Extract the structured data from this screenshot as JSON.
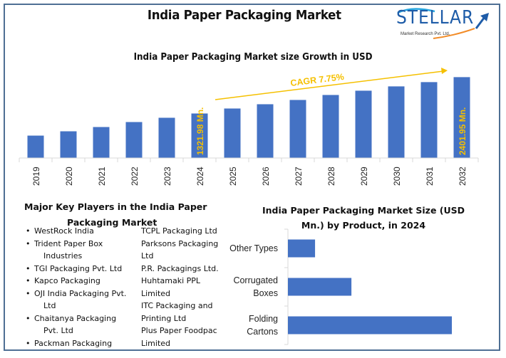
{
  "header": {
    "title": "India Paper Packaging Market",
    "logo": {
      "name": "STELLAR",
      "subtitle": "Market Research Pvt. Ltd.",
      "icon": "arrow-up-right-icon"
    }
  },
  "colors": {
    "bar": "#4472c4",
    "accent": "#f5c000",
    "frame": "#4e6f94",
    "axis": "#d9d9d9"
  },
  "chart_data": [
    {
      "type": "bar",
      "title": "India Paper Packaging Market size Growth in USD",
      "xlabel": "",
      "ylabel": "",
      "categories": [
        "2019",
        "2020",
        "2021",
        "2022",
        "2023",
        "2024",
        "2025",
        "2026",
        "2027",
        "2028",
        "2029",
        "2030",
        "2031",
        "2032"
      ],
      "values": [
        665,
        793,
        920,
        1068,
        1195,
        1321.98,
        1470,
        1597,
        1724,
        1872,
        1999,
        2127,
        2254,
        2401.95
      ],
      "ylim": [
        0,
        2600
      ],
      "grid": false,
      "data_labels": [
        {
          "category": "2024",
          "text": "1321.98 Mn."
        },
        {
          "category": "2032",
          "text": "2401.95 Mn."
        }
      ],
      "annotation": {
        "text": "CAGR 7.75%",
        "type": "arrow",
        "from": "2024",
        "to": "2032"
      }
    },
    {
      "type": "bar",
      "orientation": "horizontal",
      "title": "India Paper Packaging Market Size (USD Mn.) by Product, in 2024",
      "categories": [
        "Other Types",
        "Corrugated Boxes",
        "Folding Cartons"
      ],
      "category_lines": [
        [
          "Other Types"
        ],
        [
          "Corrugated",
          "Boxes"
        ],
        [
          "Folding",
          "Cartons"
        ]
      ],
      "values": [
        141,
        330,
        852
      ],
      "xlim": [
        0,
        900
      ],
      "grid": false
    }
  ],
  "players": {
    "title_line1": "Major Key Players in the India Paper",
    "title_line2": "Packaging Market",
    "col1": [
      {
        "name": "WestRock India"
      },
      {
        "name": "Trident Paper Box",
        "cont": "Industries"
      },
      {
        "name": "TGI Packaging Pvt. Ltd"
      },
      {
        "name": "Kapco Packaging"
      },
      {
        "name": "OJI India Packaging Pvt.",
        "cont": "Ltd"
      },
      {
        "name": "Chaitanya Packaging",
        "cont": "Pvt. Ltd"
      },
      {
        "name": "Packman Packaging"
      }
    ],
    "col2": [
      "TCPL Packaging Ltd",
      "Parksons Packaging",
      "Ltd",
      "P.R. Packagings Ltd.",
      "Huhtamaki PPL",
      "Limited",
      "ITC Packaging and",
      "Printing Ltd",
      "Plus Paper Foodpac",
      "Limited"
    ]
  }
}
